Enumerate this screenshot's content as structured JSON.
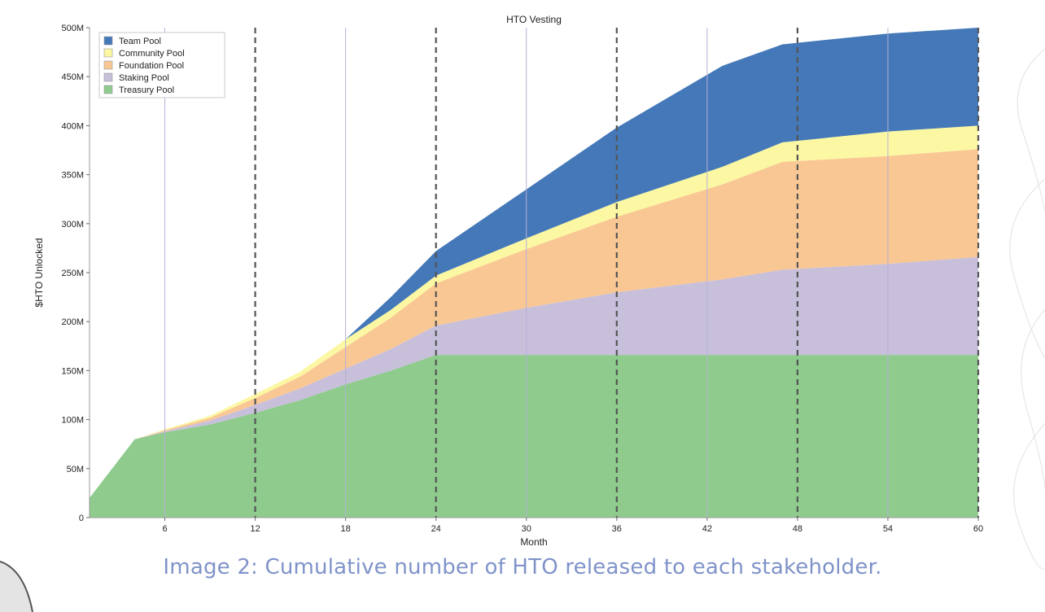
{
  "chart_data": {
    "type": "area",
    "stacked": true,
    "title": "HTO Vesting",
    "xlabel": "Month",
    "ylabel": "$HTO Unlocked",
    "xlim": [
      1,
      60
    ],
    "ylim": [
      0,
      500000000
    ],
    "xticks": [
      6,
      12,
      18,
      24,
      30,
      36,
      42,
      48,
      54,
      60
    ],
    "yticks": [
      0,
      50000000,
      100000000,
      150000000,
      200000000,
      250000000,
      300000000,
      350000000,
      400000000,
      450000000,
      500000000
    ],
    "ytick_labels": [
      "0",
      "50M",
      "100M",
      "150M",
      "200M",
      "250M",
      "300M",
      "350M",
      "400M",
      "450M",
      "500M"
    ],
    "vertical_dashed_lines": [
      12,
      24,
      36,
      48,
      60
    ],
    "grid": "vertical",
    "legend_position": "top-left",
    "x": [
      1,
      4,
      6,
      9,
      12,
      15,
      18,
      21,
      24,
      30,
      36,
      43,
      47,
      54,
      60
    ],
    "series": [
      {
        "name": "Treasury Pool",
        "color": "#8ecb8d",
        "values": [
          20000000,
          80000000,
          87000000,
          95000000,
          107000000,
          120000000,
          136000000,
          150000000,
          166000000,
          166000000,
          166000000,
          166000000,
          166000000,
          166000000,
          166000000
        ]
      },
      {
        "name": "Staking Pool",
        "color": "#c8bfdb",
        "values": [
          0,
          0,
          1000000,
          4000000,
          8000000,
          12000000,
          16000000,
          22000000,
          30000000,
          48000000,
          64000000,
          77000000,
          87000000,
          93000000,
          100000000
        ]
      },
      {
        "name": "Foundation Pool",
        "color": "#f9c794",
        "values": [
          0,
          0,
          1000000,
          3000000,
          7000000,
          12000000,
          22000000,
          32000000,
          43000000,
          60000000,
          77000000,
          97000000,
          110000000,
          110000000,
          110000000
        ]
      },
      {
        "name": "Community Pool",
        "color": "#fbf7a2",
        "values": [
          0,
          0,
          1000000,
          2000000,
          4000000,
          5000000,
          8000000,
          8000000,
          8000000,
          11000000,
          15000000,
          18000000,
          20000000,
          25000000,
          24000000
        ]
      },
      {
        "name": "Team Pool",
        "color": "#4478b8",
        "values": [
          0,
          0,
          0,
          0,
          0,
          0,
          0,
          13000000,
          25000000,
          50000000,
          76000000,
          103000000,
          100000000,
          100000000,
          100000000
        ]
      }
    ],
    "legend_order": [
      "Team Pool",
      "Community Pool",
      "Foundation Pool",
      "Staking Pool",
      "Treasury Pool"
    ]
  },
  "caption": "Image 2: Cumulative number of HTO released to each stakeholder."
}
